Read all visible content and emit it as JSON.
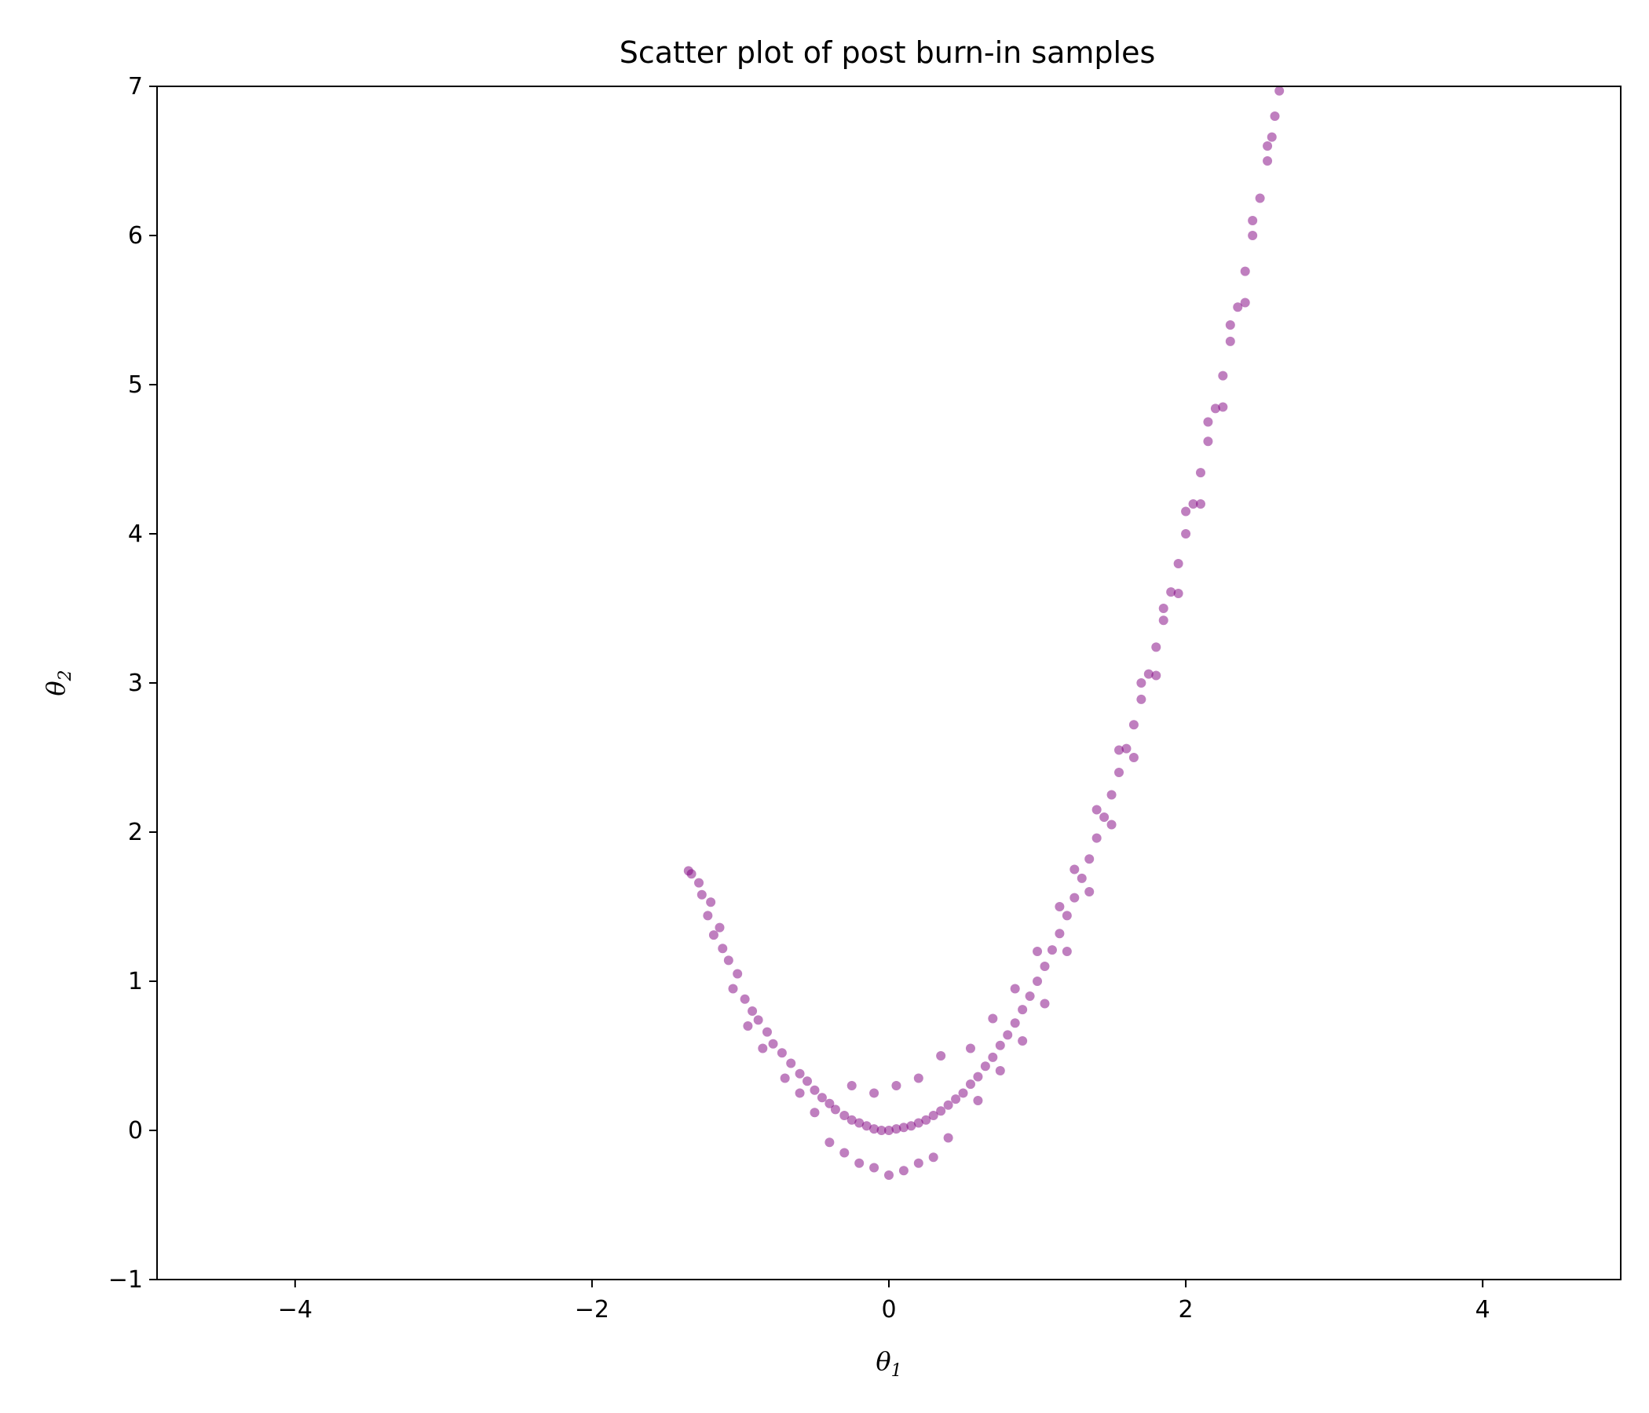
{
  "chart_data": {
    "type": "scatter",
    "title": "Scatter plot of post burn-in samples",
    "xlabel": "θ",
    "xlabel_sub": "1",
    "ylabel": "θ",
    "ylabel_sub": "2",
    "xlim": [
      -4.93,
      4.93
    ],
    "ylim": [
      -1,
      7
    ],
    "x_ticks": [
      -4,
      -2,
      0,
      2,
      4
    ],
    "x_tick_labels": [
      "−4",
      "−2",
      "0",
      "2",
      "4"
    ],
    "y_ticks": [
      -1,
      0,
      1,
      2,
      3,
      4,
      5,
      6,
      7
    ],
    "y_tick_labels": [
      "−1",
      "0",
      "1",
      "2",
      "3",
      "4",
      "5",
      "6",
      "7"
    ],
    "grid": false,
    "legend": "none",
    "marker_color": "#800080",
    "marker_alpha": 0.5,
    "series": [
      {
        "points": [
          [
            -1.35,
            1.74
          ],
          [
            -1.33,
            1.72
          ],
          [
            -1.28,
            1.66
          ],
          [
            -1.26,
            1.58
          ],
          [
            -1.2,
            1.53
          ],
          [
            -1.22,
            1.44
          ],
          [
            -1.14,
            1.36
          ],
          [
            -1.18,
            1.31
          ],
          [
            -1.12,
            1.22
          ],
          [
            -1.08,
            1.14
          ],
          [
            -1.02,
            1.05
          ],
          [
            -1.05,
            0.95
          ],
          [
            -0.97,
            0.88
          ],
          [
            -0.92,
            0.8
          ],
          [
            -0.88,
            0.74
          ],
          [
            -0.82,
            0.66
          ],
          [
            -0.78,
            0.58
          ],
          [
            -0.72,
            0.52
          ],
          [
            -0.66,
            0.45
          ],
          [
            -0.6,
            0.38
          ],
          [
            -0.55,
            0.33
          ],
          [
            -0.5,
            0.27
          ],
          [
            -0.45,
            0.22
          ],
          [
            -0.4,
            0.18
          ],
          [
            -0.36,
            0.14
          ],
          [
            -0.3,
            0.1
          ],
          [
            -0.25,
            0.07
          ],
          [
            -0.2,
            0.05
          ],
          [
            -0.15,
            0.03
          ],
          [
            -0.1,
            0.01
          ],
          [
            -0.05,
            0.0
          ],
          [
            0.0,
            0.0
          ],
          [
            0.05,
            0.01
          ],
          [
            0.1,
            0.02
          ],
          [
            0.15,
            0.03
          ],
          [
            0.2,
            0.05
          ],
          [
            0.25,
            0.07
          ],
          [
            0.3,
            0.1
          ],
          [
            0.35,
            0.13
          ],
          [
            0.4,
            0.17
          ],
          [
            0.45,
            0.21
          ],
          [
            0.5,
            0.25
          ],
          [
            0.55,
            0.31
          ],
          [
            0.6,
            0.36
          ],
          [
            0.65,
            0.43
          ],
          [
            0.7,
            0.49
          ],
          [
            0.75,
            0.57
          ],
          [
            0.8,
            0.64
          ],
          [
            0.85,
            0.72
          ],
          [
            0.9,
            0.81
          ],
          [
            0.95,
            0.9
          ],
          [
            1.0,
            1.0
          ],
          [
            1.05,
            1.1
          ],
          [
            1.1,
            1.21
          ],
          [
            1.15,
            1.32
          ],
          [
            1.2,
            1.44
          ],
          [
            1.25,
            1.56
          ],
          [
            1.3,
            1.69
          ],
          [
            1.35,
            1.82
          ],
          [
            1.4,
            1.96
          ],
          [
            1.45,
            2.1
          ],
          [
            1.5,
            2.25
          ],
          [
            1.55,
            2.4
          ],
          [
            1.6,
            2.56
          ],
          [
            1.65,
            2.72
          ],
          [
            1.7,
            2.89
          ],
          [
            1.75,
            3.06
          ],
          [
            1.8,
            3.24
          ],
          [
            1.85,
            3.42
          ],
          [
            1.9,
            3.61
          ],
          [
            1.95,
            3.8
          ],
          [
            2.0,
            4.0
          ],
          [
            2.05,
            4.2
          ],
          [
            2.1,
            4.41
          ],
          [
            2.15,
            4.62
          ],
          [
            2.2,
            4.84
          ],
          [
            2.25,
            5.06
          ],
          [
            2.3,
            5.29
          ],
          [
            2.35,
            5.52
          ],
          [
            2.4,
            5.76
          ],
          [
            2.45,
            6.0
          ],
          [
            2.5,
            6.25
          ],
          [
            2.55,
            6.5
          ],
          [
            2.58,
            6.66
          ],
          [
            2.6,
            6.8
          ],
          [
            2.63,
            6.97
          ],
          [
            -0.3,
            -0.15
          ],
          [
            -0.2,
            -0.22
          ],
          [
            -0.1,
            -0.25
          ],
          [
            0.0,
            -0.3
          ],
          [
            0.1,
            -0.27
          ],
          [
            0.2,
            -0.22
          ],
          [
            0.3,
            -0.18
          ],
          [
            -0.4,
            -0.08
          ],
          [
            0.4,
            -0.05
          ],
          [
            -0.25,
            0.3
          ],
          [
            -0.1,
            0.25
          ],
          [
            0.05,
            0.3
          ],
          [
            0.2,
            0.35
          ],
          [
            0.35,
            0.5
          ],
          [
            0.55,
            0.55
          ],
          [
            0.7,
            0.75
          ],
          [
            0.85,
            0.95
          ],
          [
            1.0,
            1.2
          ],
          [
            1.15,
            1.5
          ],
          [
            1.25,
            1.75
          ],
          [
            1.4,
            2.15
          ],
          [
            1.55,
            2.55
          ],
          [
            1.7,
            3.0
          ],
          [
            1.85,
            3.5
          ],
          [
            2.0,
            4.15
          ],
          [
            2.15,
            4.75
          ],
          [
            2.3,
            5.4
          ],
          [
            2.45,
            6.1
          ],
          [
            2.55,
            6.6
          ],
          [
            -0.7,
            0.35
          ],
          [
            -0.6,
            0.25
          ],
          [
            -0.5,
            0.12
          ],
          [
            -0.85,
            0.55
          ],
          [
            -0.95,
            0.7
          ],
          [
            0.6,
            0.2
          ],
          [
            0.75,
            0.4
          ],
          [
            0.9,
            0.6
          ],
          [
            1.05,
            0.85
          ],
          [
            1.2,
            1.2
          ],
          [
            1.35,
            1.6
          ],
          [
            1.5,
            2.05
          ],
          [
            1.65,
            2.5
          ],
          [
            1.8,
            3.05
          ],
          [
            1.95,
            3.6
          ],
          [
            2.1,
            4.2
          ],
          [
            2.25,
            4.85
          ],
          [
            2.4,
            5.55
          ]
        ]
      }
    ]
  }
}
